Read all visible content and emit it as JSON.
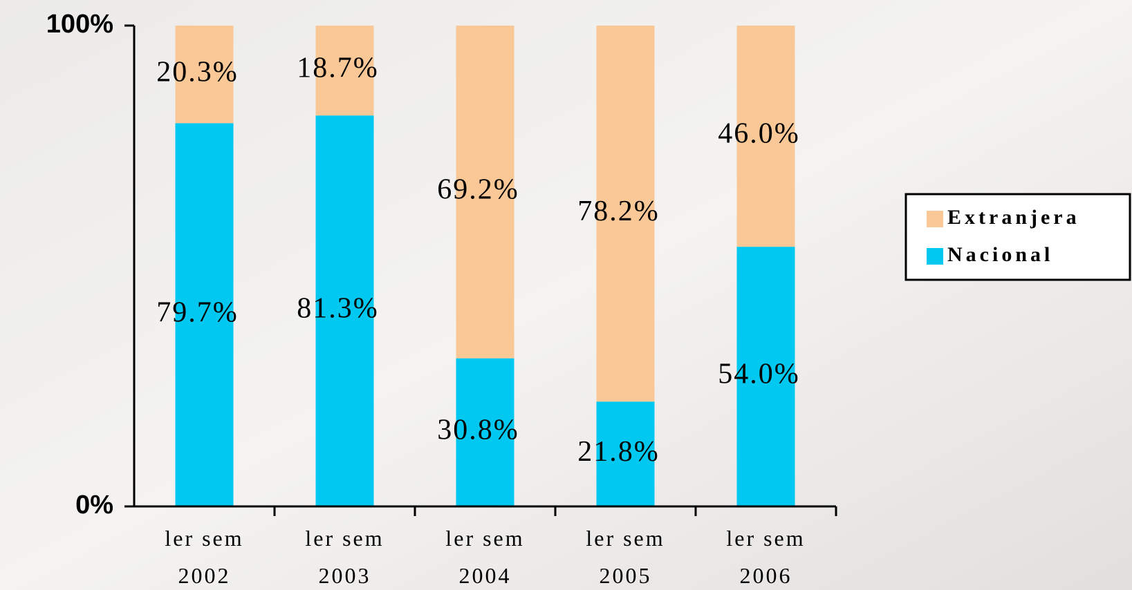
{
  "chart_data": {
    "type": "stacked_bar",
    "categories": [
      "ler sem 2002",
      "ler sem 2003",
      "ler sem 2004",
      "ler sem 2005",
      "ler sem 2006"
    ],
    "series": [
      {
        "name": "Nacional",
        "color": "#00c8f0",
        "values": [
          79.7,
          81.3,
          30.8,
          21.8,
          54.0
        ],
        "value_labels": [
          "79.7%",
          "81.3%",
          "30.8%",
          "21.8%",
          "54.0%"
        ]
      },
      {
        "name": "Extranjera",
        "color": "#fac896",
        "values": [
          20.3,
          18.7,
          69.2,
          78.2,
          46.0
        ],
        "value_labels": [
          "20.3%",
          "18.7%",
          "69.2%",
          "78.2%",
          "46.0%"
        ]
      }
    ],
    "ylim": [
      0,
      100
    ],
    "yticks": [
      {
        "value": 0,
        "label": "0%"
      },
      {
        "value": 100,
        "label": "100%"
      }
    ],
    "legend_position": "right"
  }
}
